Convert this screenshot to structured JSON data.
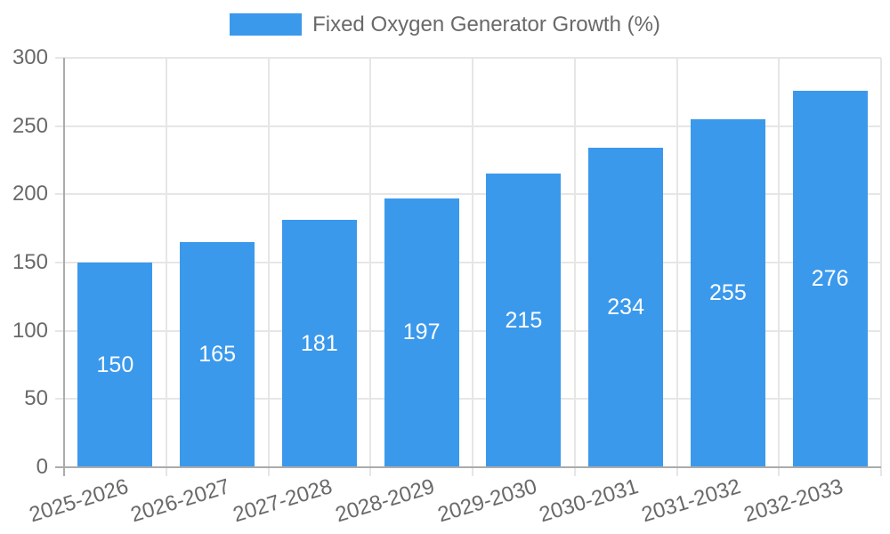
{
  "legend": {
    "label": "Fixed Oxygen Generator Growth (%)"
  },
  "chart_data": {
    "type": "bar",
    "title": "",
    "xlabel": "",
    "ylabel": "",
    "categories": [
      "2025-2026",
      "2026-2027",
      "2027-2028",
      "2028-2029",
      "2029-2030",
      "2030-2031",
      "2031-2032",
      "2032-2033"
    ],
    "series": [
      {
        "name": "Fixed Oxygen Generator Growth (%)",
        "values": [
          150,
          165,
          181,
          197,
          215,
          234,
          255,
          276
        ]
      }
    ],
    "value_labels": [
      "150",
      "165",
      "181",
      "197",
      "215",
      "234",
      "255",
      "276"
    ],
    "ylim": [
      0,
      300
    ],
    "yticks": [
      0,
      50,
      100,
      150,
      200,
      250,
      300
    ],
    "grid": true,
    "legend_position": "top",
    "colors": {
      "bar": "#3B99EC",
      "grid": "#E6E6E6",
      "axis_line": "#ABABAB",
      "axis_text": "#696969",
      "bar_value_text": "#FFFFFF"
    }
  }
}
